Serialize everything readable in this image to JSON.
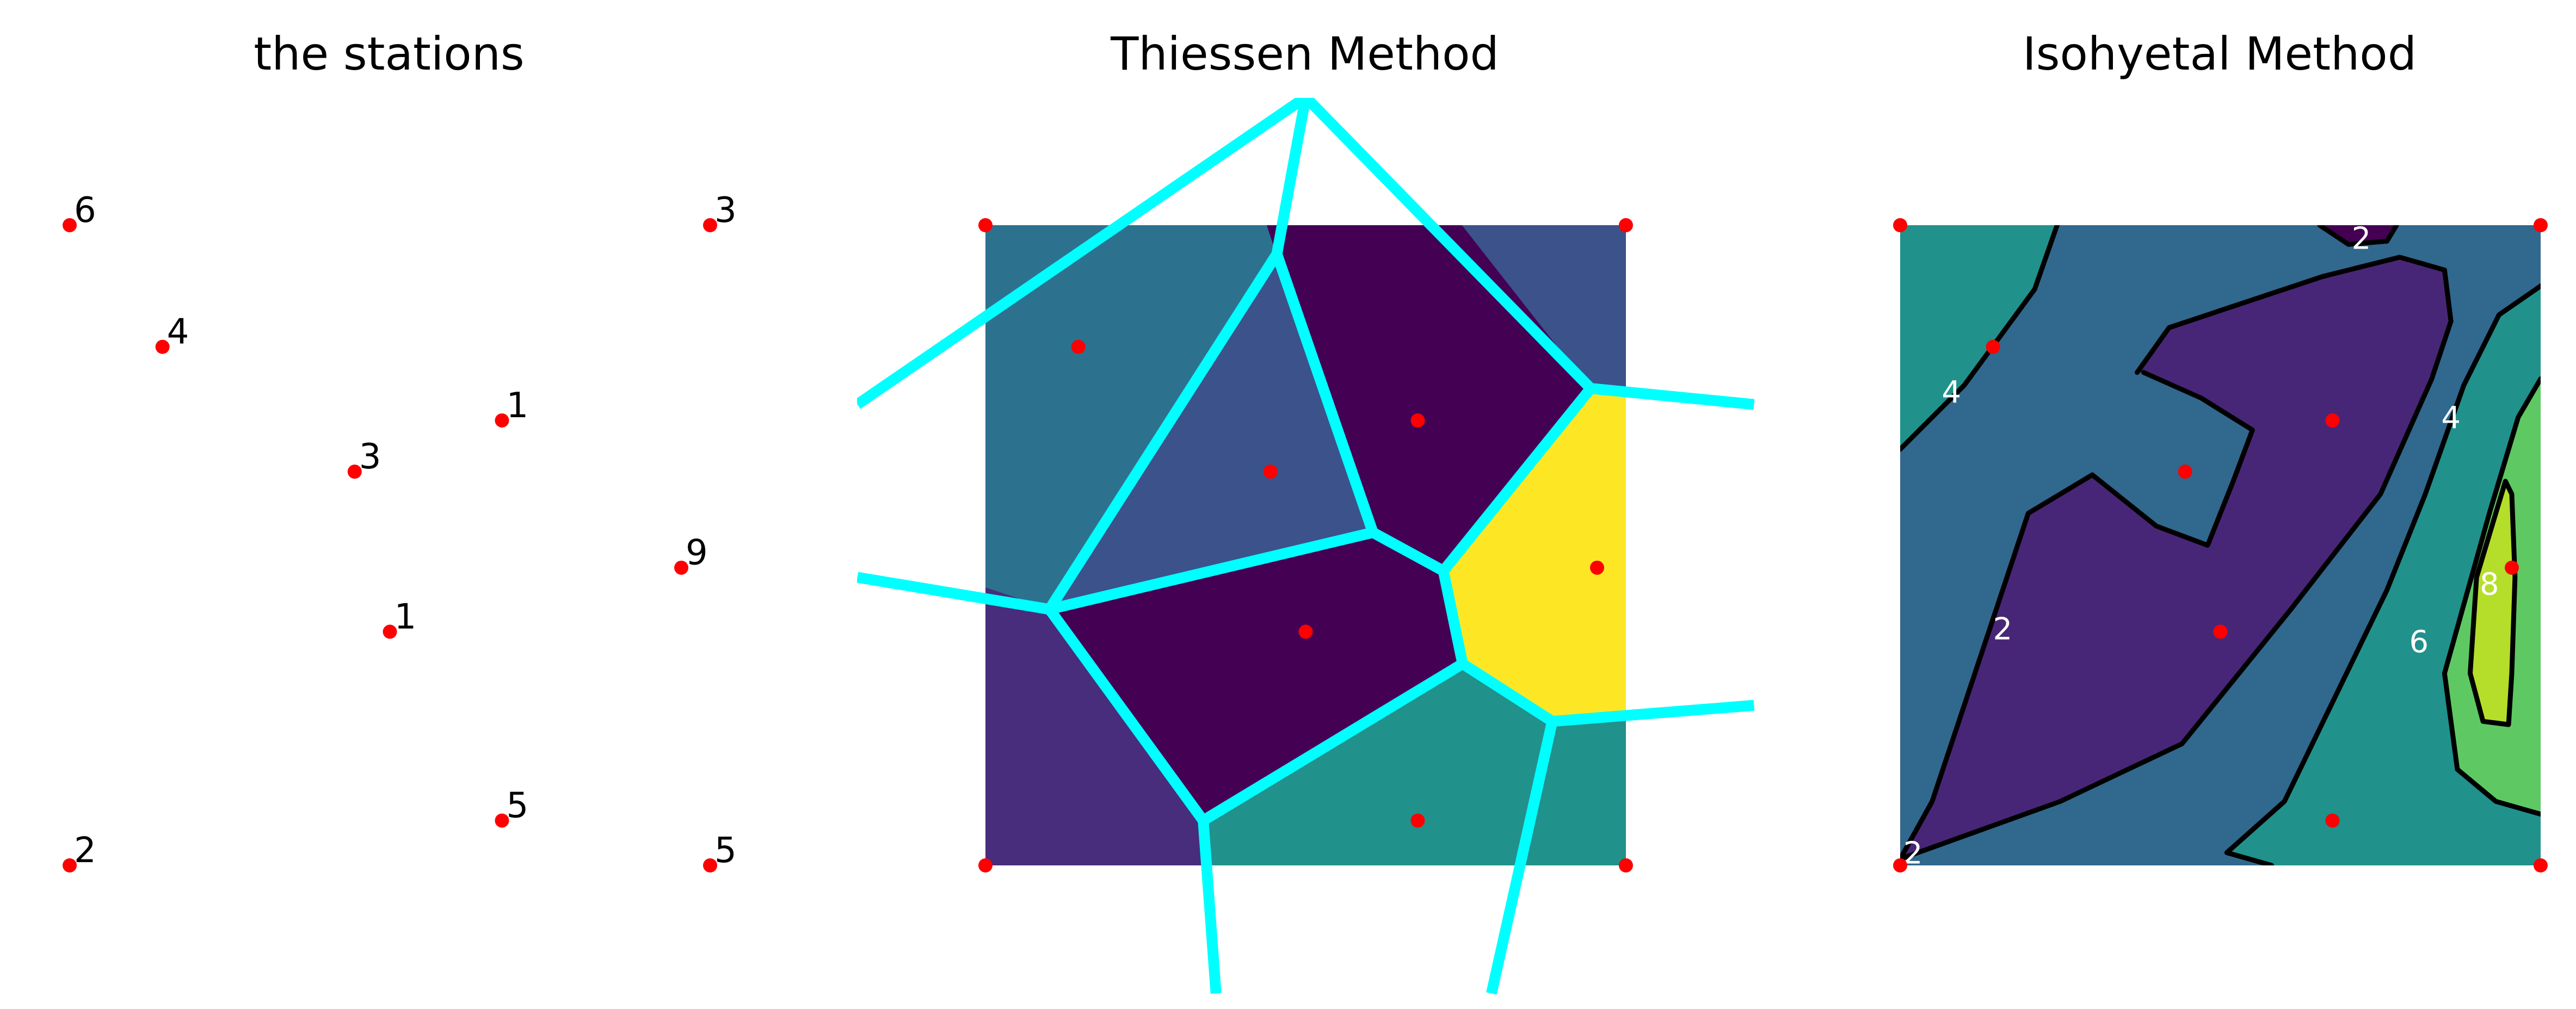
{
  "chart_data": [
    {
      "type": "scatter",
      "title": "the stations",
      "xlim": [
        0,
        1
      ],
      "ylim": [
        0,
        1
      ],
      "point_color": "#ff0000",
      "points": [
        {
          "x": 0.0,
          "y": 1.0,
          "value": "6"
        },
        {
          "x": 1.0,
          "y": 1.0,
          "value": "3"
        },
        {
          "x": 0.145,
          "y": 0.81,
          "value": "4"
        },
        {
          "x": 0.675,
          "y": 0.695,
          "value": "1"
        },
        {
          "x": 0.445,
          "y": 0.615,
          "value": "3"
        },
        {
          "x": 0.955,
          "y": 0.465,
          "value": "9"
        },
        {
          "x": 0.5,
          "y": 0.365,
          "value": "1"
        },
        {
          "x": 0.675,
          "y": 0.07,
          "value": "5"
        },
        {
          "x": 0.0,
          "y": 0.0,
          "value": "2"
        },
        {
          "x": 1.0,
          "y": 0.0,
          "value": "5"
        }
      ]
    },
    {
      "type": "heatmap",
      "title": "Thiessen Method",
      "xlim": [
        0,
        1
      ],
      "ylim": [
        0,
        1
      ],
      "edge_color": "#00ffff",
      "point_color": "#ff0000",
      "colormap": "viridis",
      "cells": [
        {
          "value": 6,
          "color": "#2db27d",
          "polygon": [
            [
              0,
              1
            ],
            [
              0.44,
              1
            ],
            [
              -0.2,
              0.5
            ]
          ]
        },
        {
          "value": 4,
          "color": "#2c728e",
          "polygon": [
            [
              0,
              1
            ],
            [
              0.44,
              1
            ],
            [
              0.455,
              0.955
            ],
            [
              0.1,
              0.4
            ],
            [
              -0.2,
              0.5
            ]
          ]
        },
        {
          "value": 3,
          "color": "#3b528b",
          "polygon": [
            [
              0.455,
              0.955
            ],
            [
              0.605,
              0.52
            ],
            [
              0.1,
              0.4
            ]
          ]
        },
        {
          "value": 1,
          "color": "#440154",
          "polygon": [
            [
              0.44,
              1
            ],
            [
              0.745,
              1
            ],
            [
              0.945,
              0.745
            ],
            [
              0.715,
              0.46
            ],
            [
              0.605,
              0.52
            ],
            [
              0.455,
              0.955
            ]
          ]
        },
        {
          "value": 3,
          "color": "#3b528b",
          "polygon": [
            [
              0.745,
              1
            ],
            [
              1,
              1
            ],
            [
              1,
              0.73
            ],
            [
              0.945,
              0.745
            ]
          ]
        },
        {
          "value": 9,
          "color": "#fde725",
          "polygon": [
            [
              0.945,
              0.745
            ],
            [
              1,
              0.73
            ],
            [
              1,
              0.225
            ],
            [
              0.885,
              0.225
            ],
            [
              0.745,
              0.315
            ],
            [
              0.715,
              0.46
            ]
          ]
        },
        {
          "value": 1,
          "color": "#440154",
          "polygon": [
            [
              0.1,
              0.4
            ],
            [
              0.605,
              0.52
            ],
            [
              0.715,
              0.46
            ],
            [
              0.745,
              0.315
            ],
            [
              0.34,
              0.07
            ]
          ]
        },
        {
          "value": 5,
          "color": "#21918c",
          "polygon": [
            [
              0.34,
              0.07
            ],
            [
              0.745,
              0.315
            ],
            [
              0.885,
              0.225
            ],
            [
              1,
              0.225
            ],
            [
              1,
              0
            ],
            [
              0.34,
              0
            ]
          ]
        },
        {
          "value": 2,
          "color": "#472d7b",
          "polygon": [
            [
              -0.2,
              0.5
            ],
            [
              0.1,
              0.4
            ],
            [
              0.34,
              0.07
            ],
            [
              0.34,
              0
            ],
            [
              -0.2,
              0
            ]
          ]
        }
      ],
      "edges": [
        [
          [
            0.5,
            1.2
          ],
          [
            0.455,
            0.955
          ]
        ],
        [
          [
            0.5,
            1.2
          ],
          [
            0.945,
            0.745
          ]
        ],
        [
          [
            0.5,
            1.2
          ],
          [
            -0.2,
            0.72
          ]
        ],
        [
          [
            0.455,
            0.955
          ],
          [
            0.1,
            0.4
          ]
        ],
        [
          [
            0.455,
            0.955
          ],
          [
            0.605,
            0.52
          ]
        ],
        [
          [
            0.945,
            0.745
          ],
          [
            1.2,
            0.72
          ]
        ],
        [
          [
            0.945,
            0.745
          ],
          [
            0.715,
            0.46
          ]
        ],
        [
          [
            0.605,
            0.52
          ],
          [
            0.715,
            0.46
          ]
        ],
        [
          [
            0.605,
            0.52
          ],
          [
            0.1,
            0.4
          ]
        ],
        [
          [
            0.1,
            0.4
          ],
          [
            -0.2,
            0.45
          ]
        ],
        [
          [
            0.1,
            0.4
          ],
          [
            0.34,
            0.07
          ]
        ],
        [
          [
            0.715,
            0.46
          ],
          [
            0.745,
            0.315
          ]
        ],
        [
          [
            0.745,
            0.315
          ],
          [
            0.34,
            0.07
          ]
        ],
        [
          [
            0.745,
            0.315
          ],
          [
            0.885,
            0.225
          ]
        ],
        [
          [
            0.885,
            0.225
          ],
          [
            1.2,
            0.25
          ]
        ],
        [
          [
            0.885,
            0.225
          ],
          [
            0.79,
            -0.2
          ]
        ],
        [
          [
            0.34,
            0.07
          ],
          [
            0.36,
            -0.2
          ]
        ]
      ],
      "points": [
        {
          "x": 0.0,
          "y": 1.0
        },
        {
          "x": 1.0,
          "y": 1.0
        },
        {
          "x": 0.145,
          "y": 0.81
        },
        {
          "x": 0.675,
          "y": 0.695
        },
        {
          "x": 0.445,
          "y": 0.615
        },
        {
          "x": 0.955,
          "y": 0.465
        },
        {
          "x": 0.5,
          "y": 0.365
        },
        {
          "x": 0.675,
          "y": 0.07
        },
        {
          "x": 0.0,
          "y": 0.0
        },
        {
          "x": 1.0,
          "y": 0.0
        }
      ]
    },
    {
      "type": "contour",
      "title": "Isohyetal Method",
      "xlim": [
        0,
        1
      ],
      "ylim": [
        0,
        1
      ],
      "line_color": "#000000",
      "point_color": "#ff0000",
      "colormap": "viridis",
      "background_color": "#31688e",
      "regions": [
        {
          "range": "4-5",
          "color": "#21918c",
          "polygon": [
            [
              0,
              1
            ],
            [
              0.245,
              1
            ],
            [
              0.21,
              0.9
            ],
            [
              0.1,
              0.75
            ],
            [
              0,
              0.65
            ]
          ]
        },
        {
          "range": "0-2",
          "color": "#440154",
          "polygon": [
            [
              0.655,
              1
            ],
            [
              0.775,
              1
            ],
            [
              0.76,
              0.975
            ],
            [
              0.7,
              0.97
            ]
          ]
        },
        {
          "range": "4-6",
          "color": "#21918c",
          "polygon": [
            [
              1,
              0.905
            ],
            [
              0.935,
              0.86
            ],
            [
              0.88,
              0.75
            ],
            [
              0.82,
              0.58
            ],
            [
              0.76,
              0.43
            ],
            [
              0.6,
              0.1
            ],
            [
              0.51,
              0.02
            ],
            [
              0.58,
              0
            ],
            [
              1,
              0
            ]
          ]
        },
        {
          "range": "6-8",
          "color": "#5ec962",
          "polygon": [
            [
              1,
              0.76
            ],
            [
              0.965,
              0.7
            ],
            [
              0.92,
              0.55
            ],
            [
              0.85,
              0.3
            ],
            [
              0.87,
              0.15
            ],
            [
              0.93,
              0.1
            ],
            [
              1,
              0.08
            ]
          ]
        },
        {
          "range": "8-9",
          "color": "#b5de2b",
          "polygon": [
            [
              0.945,
              0.6
            ],
            [
              0.93,
              0.55
            ],
            [
              0.9,
              0.45
            ],
            [
              0.89,
              0.3
            ],
            [
              0.91,
              0.225
            ],
            [
              0.95,
              0.22
            ],
            [
              0.955,
              0.3
            ],
            [
              0.96,
              0.45
            ],
            [
              0.955,
              0.58
            ]
          ]
        },
        {
          "range": "1-2",
          "color": "#482677",
          "polygon": [
            [
              0.37,
              0.77
            ],
            [
              0.42,
              0.84
            ],
            [
              0.66,
              0.92
            ],
            [
              0.78,
              0.95
            ],
            [
              0.85,
              0.93
            ],
            [
              0.86,
              0.85
            ],
            [
              0.83,
              0.76
            ],
            [
              0.75,
              0.58
            ],
            [
              0.61,
              0.4
            ],
            [
              0.44,
              0.19
            ],
            [
              0.25,
              0.1
            ],
            [
              0,
              0.01
            ],
            [
              0.05,
              0.1
            ],
            [
              0.1,
              0.25
            ],
            [
              0.2,
              0.55
            ],
            [
              0.3,
              0.61
            ],
            [
              0.4,
              0.53
            ],
            [
              0.48,
              0.5
            ],
            [
              0.52,
              0.6
            ],
            [
              0.55,
              0.68
            ],
            [
              0.47,
              0.73
            ],
            [
              0.38,
              0.77
            ]
          ]
        }
      ],
      "contours": [
        {
          "level": "4",
          "points": [
            [
              0.245,
              1
            ],
            [
              0.21,
              0.9
            ],
            [
              0.1,
              0.75
            ],
            [
              0,
              0.65
            ]
          ]
        },
        {
          "level": "2",
          "points": [
            [
              0.655,
              1
            ],
            [
              0.7,
              0.97
            ],
            [
              0.76,
              0.975
            ],
            [
              0.775,
              1
            ]
          ]
        },
        {
          "level": "2",
          "points": [
            [
              0.37,
              0.77
            ],
            [
              0.42,
              0.84
            ],
            [
              0.66,
              0.92
            ],
            [
              0.78,
              0.95
            ],
            [
              0.85,
              0.93
            ],
            [
              0.86,
              0.85
            ],
            [
              0.83,
              0.76
            ],
            [
              0.75,
              0.58
            ],
            [
              0.61,
              0.4
            ],
            [
              0.44,
              0.19
            ],
            [
              0.25,
              0.1
            ],
            [
              0,
              0.01
            ],
            [
              0.05,
              0.1
            ],
            [
              0.1,
              0.25
            ],
            [
              0.2,
              0.55
            ],
            [
              0.3,
              0.61
            ],
            [
              0.4,
              0.53
            ],
            [
              0.48,
              0.5
            ],
            [
              0.52,
              0.6
            ],
            [
              0.55,
              0.68
            ],
            [
              0.47,
              0.73
            ],
            [
              0.38,
              0.77
            ]
          ]
        },
        {
          "level": "4",
          "points": [
            [
              1,
              0.905
            ],
            [
              0.935,
              0.86
            ],
            [
              0.88,
              0.75
            ],
            [
              0.82,
              0.58
            ],
            [
              0.76,
              0.43
            ],
            [
              0.6,
              0.1
            ],
            [
              0.51,
              0.02
            ],
            [
              0.58,
              0
            ]
          ]
        },
        {
          "level": "6",
          "points": [
            [
              1,
              0.76
            ],
            [
              0.965,
              0.7
            ],
            [
              0.92,
              0.55
            ],
            [
              0.85,
              0.3
            ],
            [
              0.87,
              0.15
            ],
            [
              0.93,
              0.1
            ],
            [
              1,
              0.08
            ]
          ]
        },
        {
          "level": "8",
          "points": [
            [
              0.945,
              0.6
            ],
            [
              0.93,
              0.55
            ],
            [
              0.9,
              0.45
            ],
            [
              0.89,
              0.3
            ],
            [
              0.91,
              0.225
            ],
            [
              0.95,
              0.22
            ],
            [
              0.955,
              0.3
            ],
            [
              0.96,
              0.45
            ],
            [
              0.955,
              0.58
            ],
            [
              0.945,
              0.6
            ]
          ]
        }
      ],
      "contour_labels": [
        {
          "text": "2",
          "x": 0.72,
          "y": 0.98
        },
        {
          "text": "4",
          "x": 0.08,
          "y": 0.74
        },
        {
          "text": "4",
          "x": 0.86,
          "y": 0.7
        },
        {
          "text": "2",
          "x": 0.16,
          "y": 0.37
        },
        {
          "text": "8",
          "x": 0.92,
          "y": 0.44
        },
        {
          "text": "6",
          "x": 0.81,
          "y": 0.35
        },
        {
          "text": "2",
          "x": 0.02,
          "y": 0.02
        }
      ],
      "points": [
        {
          "x": 0.0,
          "y": 1.0
        },
        {
          "x": 1.0,
          "y": 1.0
        },
        {
          "x": 0.145,
          "y": 0.81
        },
        {
          "x": 0.675,
          "y": 0.695
        },
        {
          "x": 0.445,
          "y": 0.615
        },
        {
          "x": 0.955,
          "y": 0.465
        },
        {
          "x": 0.5,
          "y": 0.365
        },
        {
          "x": 0.675,
          "y": 0.07
        },
        {
          "x": 0.0,
          "y": 0.0
        },
        {
          "x": 1.0,
          "y": 0.0
        }
      ]
    }
  ]
}
